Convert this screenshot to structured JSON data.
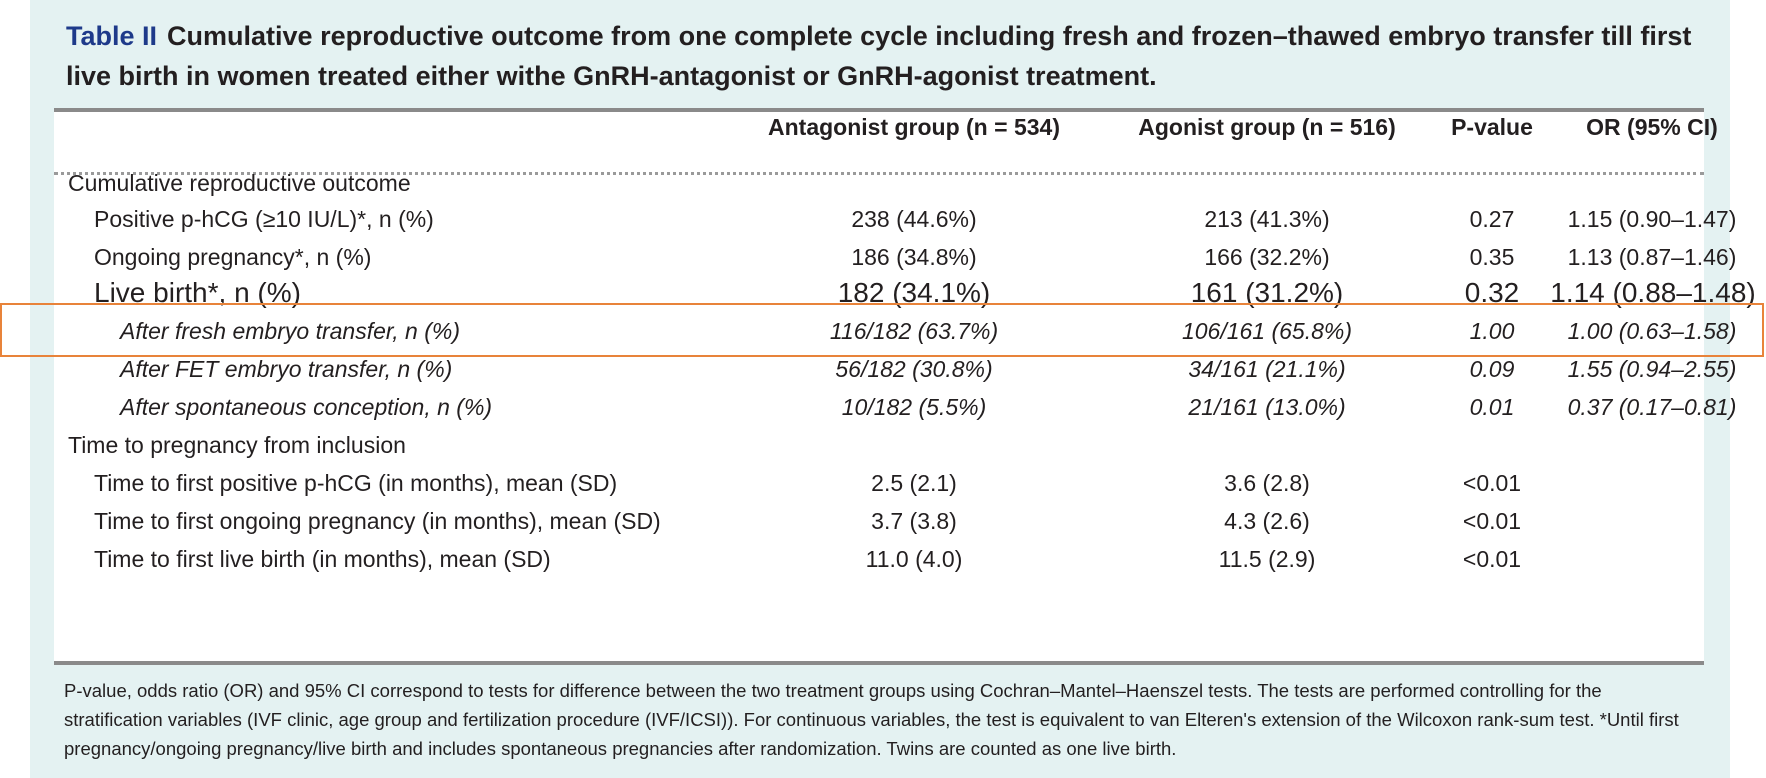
{
  "title": {
    "label": "Table II",
    "text": "Cumulative reproductive outcome from one complete cycle including fresh and frozen–thawed embryo transfer till first live birth in women treated either withe GnRH-antagonist or GnRH-agonist treatment."
  },
  "header": {
    "col_antagonist": "Antagonist group (n = 534)",
    "col_agonist": "Agonist group (n = 516)",
    "col_p": "P-value",
    "col_or": "OR (95% CI)"
  },
  "rows": [
    {
      "label": "Cumulative reproductive outcome",
      "a": "",
      "b": "",
      "p": "",
      "or": ""
    },
    {
      "label": "Positive p-hCG (≥10 IU/L)*, n (%)",
      "a": "238 (44.6%)",
      "b": "213 (41.3%)",
      "p": "0.27",
      "or": "1.15 (0.90–1.47)"
    },
    {
      "label": "Ongoing pregnancy*, n (%)",
      "a": "186 (34.8%)",
      "b": "166 (32.2%)",
      "p": "0.35",
      "or": "1.13 (0.87–1.46)"
    },
    {
      "label": "Live birth*, n (%)",
      "a": "182 (34.1%)",
      "b": "161 (31.2%)",
      "p": "0.32",
      "or": "1.14 (0.88–1.48)"
    },
    {
      "label": "After fresh embryo transfer, n (%)",
      "a": "116/182 (63.7%)",
      "b": "106/161 (65.8%)",
      "p": "1.00",
      "or": "1.00 (0.63–1.58)"
    },
    {
      "label": "After FET embryo transfer, n (%)",
      "a": "56/182 (30.8%)",
      "b": "34/161 (21.1%)",
      "p": "0.09",
      "or": "1.55 (0.94–2.55)"
    },
    {
      "label": "After spontaneous conception, n (%)",
      "a": "10/182 (5.5%)",
      "b": "21/161 (13.0%)",
      "p": "0.01",
      "or": "0.37 (0.17–0.81)"
    },
    {
      "label": "Time to pregnancy from inclusion",
      "a": "",
      "b": "",
      "p": "",
      "or": ""
    },
    {
      "label": "Time to first positive p-hCG (in months), mean (SD)",
      "a": "2.5 (2.1)",
      "b": "3.6 (2.8)",
      "p": "<0.01",
      "or": ""
    },
    {
      "label": "Time to first ongoing pregnancy (in months), mean (SD)",
      "a": "3.7 (3.8)",
      "b": "4.3 (2.6)",
      "p": "<0.01",
      "or": ""
    },
    {
      "label": "Time to first live birth (in months), mean (SD)",
      "a": "11.0 (4.0)",
      "b": "11.5 (2.9)",
      "p": "<0.01",
      "or": ""
    }
  ],
  "footnote": "P-value, odds ratio (OR) and 95% CI correspond to tests for difference between the two treatment groups using Cochran–Mantel–Haenszel tests. The tests are performed controlling for the stratification variables (IVF clinic, age group and fertilization procedure (IVF/ICSI)). For continuous variables, the test is equivalent to van Elteren's extension of the Wilcoxon rank-sum test. *Until first pregnancy/ongoing pregnancy/live birth and includes spontaneous pregnancies after randomization. Twins are counted as one live birth.",
  "colors": {
    "panel": "#e4f2f2",
    "title_label": "#1e3a8a",
    "highlight": "#e8833a"
  }
}
